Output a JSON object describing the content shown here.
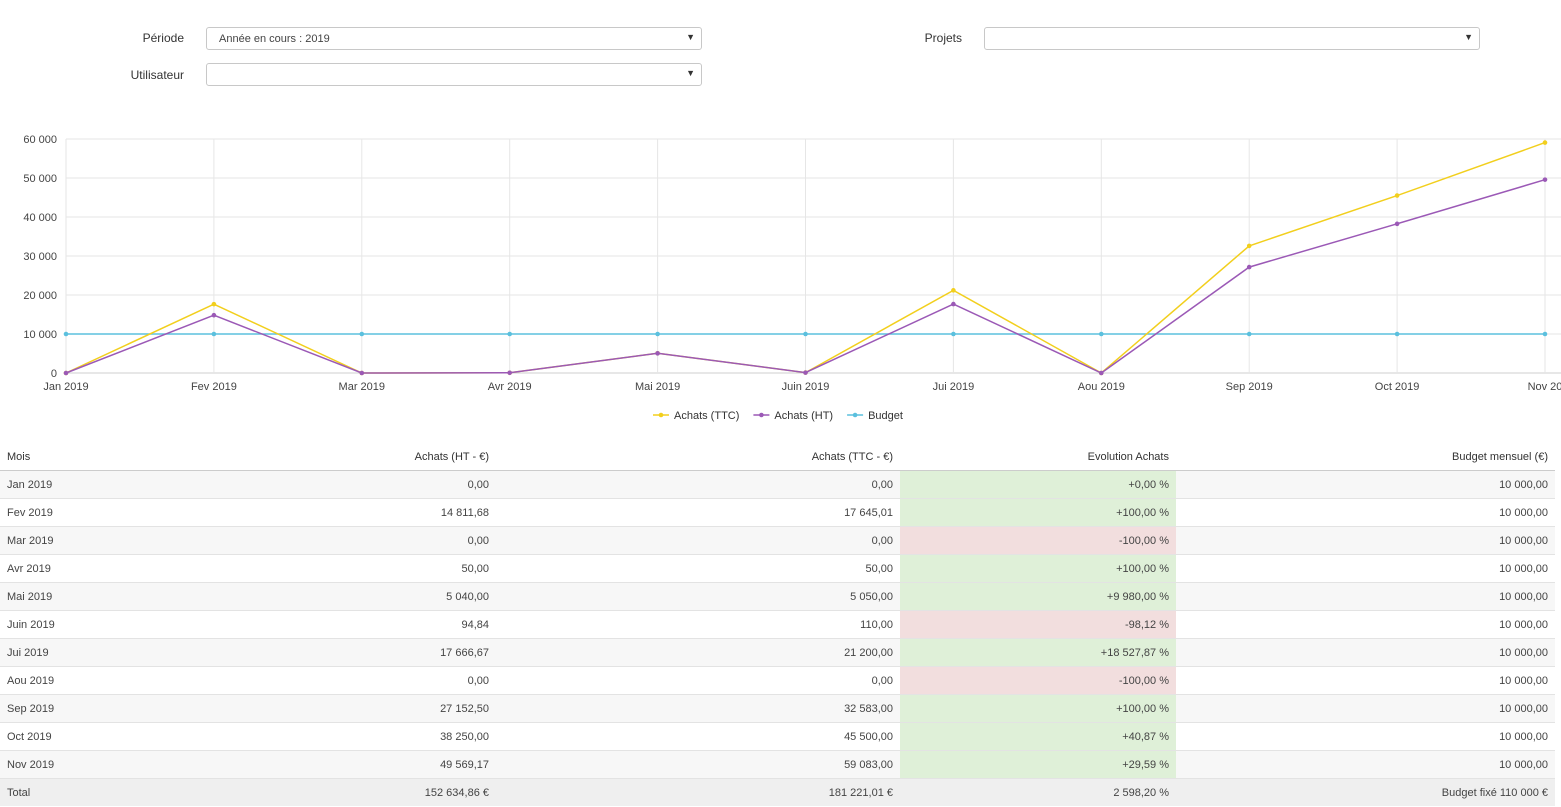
{
  "filters": {
    "periode_label": "Période",
    "periode_value": "Année en cours : 2019",
    "projets_label": "Projets",
    "projets_value": "",
    "utilisateur_label": "Utilisateur",
    "utilisateur_value": ""
  },
  "colors": {
    "ttc": "#f2cf1d",
    "ht": "#9b59b6",
    "budget": "#5bc0de",
    "positive": "#dff0d8",
    "negative": "#f2dede"
  },
  "chart_data": {
    "type": "line",
    "categories": [
      "Jan 2019",
      "Fev 2019",
      "Mar 2019",
      "Avr 2019",
      "Mai 2019",
      "Juin 2019",
      "Jui 2019",
      "Aou 2019",
      "Sep 2019",
      "Oct 2019",
      "Nov 20"
    ],
    "series": [
      {
        "name": "Achats (TTC)",
        "values": [
          0,
          17645.01,
          0,
          50,
          5050,
          110,
          21200,
          0,
          32583,
          45500,
          59083
        ],
        "color": "#f2cf1d"
      },
      {
        "name": "Achats (HT)",
        "values": [
          0,
          14811.68,
          0,
          50,
          5040,
          94.84,
          17666.67,
          0,
          27152.5,
          38250,
          49569.17
        ],
        "color": "#9b59b6"
      },
      {
        "name": "Budget",
        "values": [
          10000,
          10000,
          10000,
          10000,
          10000,
          10000,
          10000,
          10000,
          10000,
          10000,
          10000
        ],
        "color": "#5bc0de"
      }
    ],
    "yticks": [
      "0",
      "10 000",
      "20 000",
      "30 000",
      "40 000",
      "50 000",
      "60 000"
    ],
    "ylim": [
      0,
      60000
    ],
    "grid": true,
    "legend": "bottom-center"
  },
  "table": {
    "headers": [
      "Mois",
      "Achats (HT - €)",
      "Achats (TTC - €)",
      "Evolution Achats",
      "Budget mensuel (€)"
    ],
    "rows": [
      {
        "mois": "Jan 2019",
        "ht": "0,00",
        "ttc": "0,00",
        "evolution": "+0,00 %",
        "trend": "pos",
        "budget": "10 000,00"
      },
      {
        "mois": "Fev 2019",
        "ht": "14 811,68",
        "ttc": "17 645,01",
        "evolution": "+100,00 %",
        "trend": "pos",
        "budget": "10 000,00"
      },
      {
        "mois": "Mar 2019",
        "ht": "0,00",
        "ttc": "0,00",
        "evolution": "-100,00 %",
        "trend": "neg",
        "budget": "10 000,00"
      },
      {
        "mois": "Avr 2019",
        "ht": "50,00",
        "ttc": "50,00",
        "evolution": "+100,00 %",
        "trend": "pos",
        "budget": "10 000,00"
      },
      {
        "mois": "Mai 2019",
        "ht": "5 040,00",
        "ttc": "5 050,00",
        "evolution": "+9 980,00 %",
        "trend": "pos",
        "budget": "10 000,00"
      },
      {
        "mois": "Juin 2019",
        "ht": "94,84",
        "ttc": "110,00",
        "evolution": "-98,12 %",
        "trend": "neg",
        "budget": "10 000,00"
      },
      {
        "mois": "Jui 2019",
        "ht": "17 666,67",
        "ttc": "21 200,00",
        "evolution": "+18 527,87 %",
        "trend": "pos",
        "budget": "10 000,00"
      },
      {
        "mois": "Aou 2019",
        "ht": "0,00",
        "ttc": "0,00",
        "evolution": "-100,00 %",
        "trend": "neg",
        "budget": "10 000,00"
      },
      {
        "mois": "Sep 2019",
        "ht": "27 152,50",
        "ttc": "32 583,00",
        "evolution": "+100,00 %",
        "trend": "pos",
        "budget": "10 000,00"
      },
      {
        "mois": "Oct 2019",
        "ht": "38 250,00",
        "ttc": "45 500,00",
        "evolution": "+40,87 %",
        "trend": "pos",
        "budget": "10 000,00"
      },
      {
        "mois": "Nov 2019",
        "ht": "49 569,17",
        "ttc": "59 083,00",
        "evolution": "+29,59 %",
        "trend": "pos",
        "budget": "10 000,00"
      }
    ],
    "total": {
      "label": "Total",
      "ht": "152 634,86 €",
      "ttc": "181 221,01 €",
      "evolution": "2 598,20 %",
      "budget": "Budget fixé 110 000 €"
    }
  }
}
